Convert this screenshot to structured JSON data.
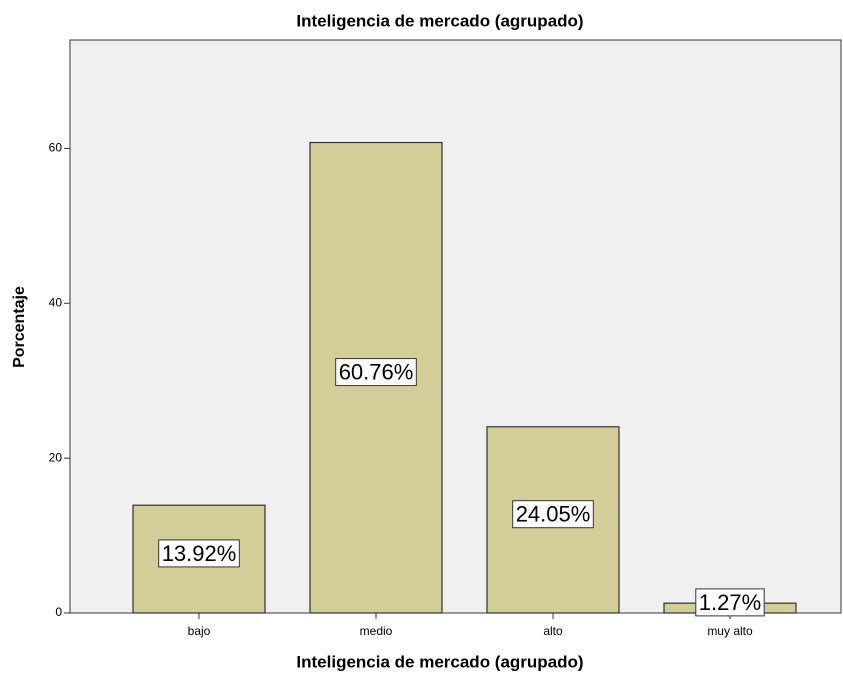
{
  "chart_data": {
    "type": "bar",
    "title": "Inteligencia de mercado (agrupado)",
    "x_label": "Inteligencia de mercado (agrupado)",
    "y_label": "Porcentaje",
    "categories": [
      "bajo",
      "medio",
      "alto",
      "muy alto"
    ],
    "values": [
      13.92,
      60.76,
      24.05,
      1.27
    ],
    "value_labels": [
      "13.92%",
      "60.76%",
      "24.05%",
      "1.27%"
    ],
    "color": "#d3ce97",
    "ylim": [
      0,
      74
    ],
    "yticks": [
      0,
      20,
      40,
      60
    ],
    "grid": false
  }
}
